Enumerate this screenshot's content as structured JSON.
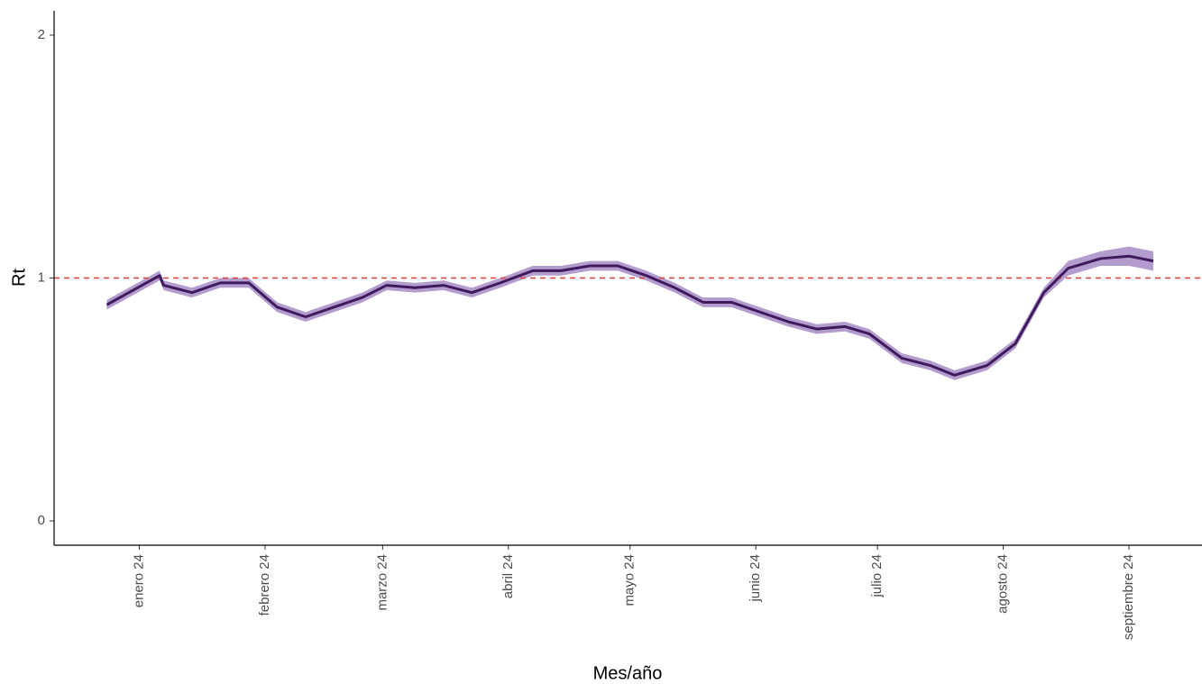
{
  "chart_data": {
    "type": "line",
    "x_label": "Mes/año",
    "y_label": "Rt",
    "x": [
      -8,
      5,
      6,
      13,
      20,
      27,
      34,
      41,
      48,
      55,
      61,
      68,
      75,
      82,
      89,
      97,
      104,
      111,
      118,
      125,
      132,
      139,
      146,
      153,
      160,
      167,
      174,
      180,
      188,
      195,
      201,
      209,
      216,
      223,
      229,
      237,
      244,
      250
    ],
    "values": [
      0.89,
      1.01,
      0.97,
      0.94,
      0.98,
      0.98,
      0.88,
      0.84,
      0.88,
      0.92,
      0.97,
      0.96,
      0.97,
      0.94,
      0.98,
      1.03,
      1.03,
      1.05,
      1.05,
      1.01,
      0.96,
      0.9,
      0.9,
      0.86,
      0.82,
      0.79,
      0.8,
      0.77,
      0.67,
      0.64,
      0.6,
      0.64,
      0.73,
      0.94,
      1.04,
      1.08,
      1.09,
      1.07
    ],
    "lower": [
      0.87,
      0.99,
      0.95,
      0.92,
      0.96,
      0.96,
      0.86,
      0.82,
      0.86,
      0.9,
      0.95,
      0.94,
      0.95,
      0.92,
      0.96,
      1.01,
      1.01,
      1.03,
      1.03,
      0.99,
      0.94,
      0.88,
      0.88,
      0.84,
      0.8,
      0.77,
      0.78,
      0.75,
      0.65,
      0.62,
      0.58,
      0.62,
      0.71,
      0.92,
      1.01,
      1.05,
      1.05,
      1.03
    ],
    "upper": [
      0.91,
      1.03,
      0.99,
      0.96,
      1.0,
      1.0,
      0.9,
      0.86,
      0.9,
      0.94,
      0.99,
      0.98,
      0.99,
      0.96,
      1.0,
      1.05,
      1.05,
      1.07,
      1.07,
      1.03,
      0.98,
      0.92,
      0.92,
      0.88,
      0.84,
      0.81,
      0.82,
      0.79,
      0.69,
      0.66,
      0.62,
      0.66,
      0.75,
      0.96,
      1.07,
      1.11,
      1.13,
      1.11
    ],
    "color": "#3f1a5c",
    "band_color": "#9b7bbf",
    "reference_line": 1,
    "reference_color": "#e0403a",
    "xlim": [
      -21,
      262
    ],
    "xticks": [
      {
        "value": 0,
        "label": "enero 24"
      },
      {
        "value": 31,
        "label": "febrero 24"
      },
      {
        "value": 60,
        "label": "marzo 24"
      },
      {
        "value": 91,
        "label": "abril 24"
      },
      {
        "value": 121,
        "label": "mayo 24"
      },
      {
        "value": 152,
        "label": "junio 24"
      },
      {
        "value": 182,
        "label": "julio 24"
      },
      {
        "value": 213,
        "label": "agosto 24"
      },
      {
        "value": 244,
        "label": "septiembre 24"
      }
    ],
    "ylim": [
      -0.1,
      2.1
    ],
    "yticks": [
      0,
      1,
      2
    ],
    "grid": false
  }
}
